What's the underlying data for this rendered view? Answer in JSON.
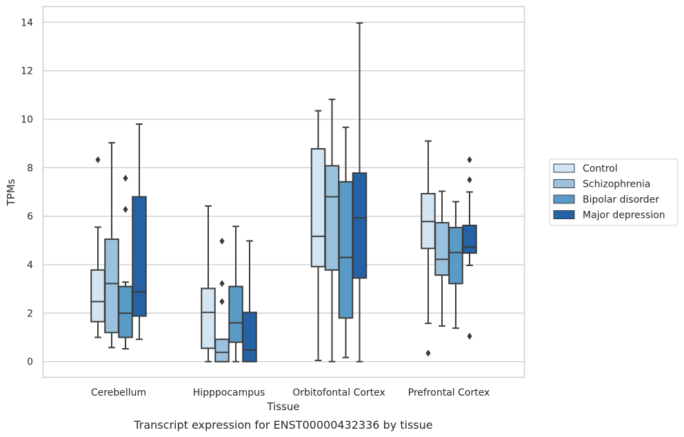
{
  "chart_data": {
    "type": "box",
    "title": "",
    "caption": "Transcript expression for ENST00000432336 by tissue",
    "xlabel": "Tissue",
    "ylabel": "TPMs",
    "ylim": [
      -0.65,
      14.65
    ],
    "yticks": [
      0,
      2,
      4,
      6,
      8,
      10,
      12,
      14
    ],
    "grid": "horizontal",
    "legend_position": "right",
    "categories": [
      "Cerebellum",
      "Hipppocampus",
      "Orbitofontal Cortex",
      "Prefrontal Cortex"
    ],
    "series": [
      {
        "name": "Control",
        "color": "#d3e4f3",
        "boxes": [
          {
            "whislo": 1.0,
            "q1": 1.65,
            "med": 2.48,
            "q3": 3.78,
            "whishi": 5.55,
            "fliers": [
              8.33
            ]
          },
          {
            "whislo": 0.0,
            "q1": 0.55,
            "med": 2.03,
            "q3": 3.02,
            "whishi": 6.42,
            "fliers": []
          },
          {
            "whislo": 0.05,
            "q1": 3.92,
            "med": 5.17,
            "q3": 8.78,
            "whishi": 10.35,
            "fliers": []
          },
          {
            "whislo": 1.58,
            "q1": 4.67,
            "med": 5.78,
            "q3": 6.93,
            "whishi": 9.1,
            "fliers": [
              0.35
            ]
          }
        ]
      },
      {
        "name": "Schizophrenia",
        "color": "#9ac2de",
        "boxes": [
          {
            "whislo": 0.58,
            "q1": 1.2,
            "med": 3.22,
            "q3": 5.05,
            "whishi": 9.03,
            "fliers": []
          },
          {
            "whislo": 0.0,
            "q1": 0.0,
            "med": 0.38,
            "q3": 0.92,
            "whishi": 0.92,
            "fliers": [
              2.48,
              3.22,
              4.97
            ]
          },
          {
            "whislo": 0.0,
            "q1": 3.78,
            "med": 6.8,
            "q3": 8.08,
            "whishi": 10.82,
            "fliers": []
          },
          {
            "whislo": 1.47,
            "q1": 3.57,
            "med": 4.22,
            "q3": 5.73,
            "whishi": 7.03,
            "fliers": []
          }
        ]
      },
      {
        "name": "Bipolar disorder",
        "color": "#5a9ac6",
        "boxes": [
          {
            "whislo": 0.53,
            "q1": 1.0,
            "med": 2.0,
            "q3": 3.1,
            "whishi": 3.28,
            "fliers": [
              6.28,
              7.57
            ]
          },
          {
            "whislo": 0.0,
            "q1": 0.8,
            "med": 1.6,
            "q3": 3.1,
            "whishi": 5.58,
            "fliers": []
          },
          {
            "whislo": 0.17,
            "q1": 1.8,
            "med": 4.3,
            "q3": 7.42,
            "whishi": 9.67,
            "fliers": []
          },
          {
            "whislo": 1.38,
            "q1": 3.22,
            "med": 4.5,
            "q3": 5.53,
            "whishi": 6.6,
            "fliers": []
          }
        ]
      },
      {
        "name": "Major depression",
        "color": "#2462a5",
        "boxes": [
          {
            "whislo": 0.92,
            "q1": 1.88,
            "med": 2.88,
            "q3": 6.8,
            "whishi": 9.8,
            "fliers": []
          },
          {
            "whislo": 0.0,
            "q1": 0.0,
            "med": 0.48,
            "q3": 2.03,
            "whishi": 4.98,
            "fliers": []
          },
          {
            "whislo": 0.0,
            "q1": 3.45,
            "med": 5.93,
            "q3": 7.78,
            "whishi": 13.97,
            "fliers": []
          },
          {
            "whislo": 3.97,
            "q1": 4.48,
            "med": 4.72,
            "q3": 5.62,
            "whishi": 7.0,
            "fliers": [
              1.05,
              7.5,
              8.33
            ]
          }
        ]
      }
    ]
  }
}
